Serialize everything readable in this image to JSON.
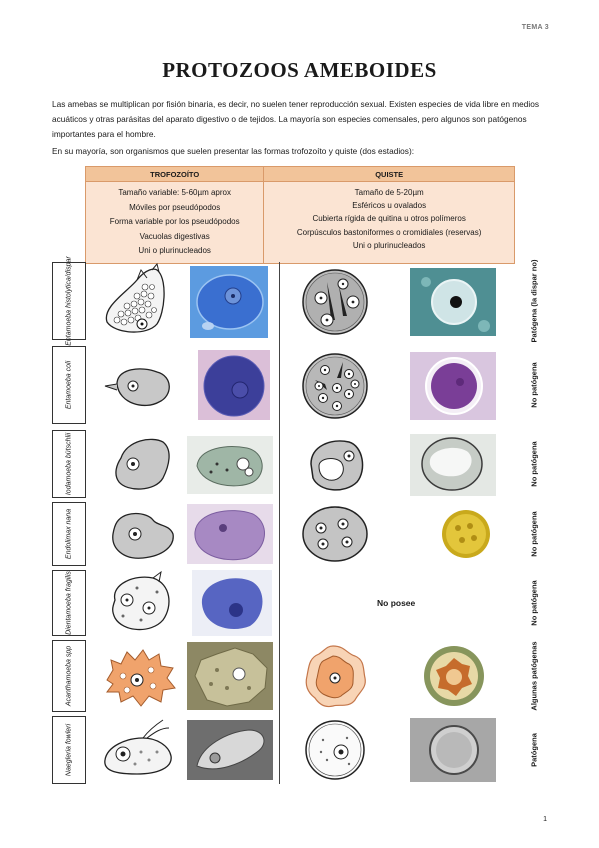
{
  "header": {
    "tema": "TEMA 3"
  },
  "title": "PROTOZOOS AMEBOIDES",
  "intro": {
    "p1": "Las amebas se multiplican por fisión binaria, es decir, no suelen tener reproducción sexual. Existen especies de vida libre en medios acuáticos y otras parásitas del aparato digestivo o de tejidos. La mayoría son especies comensales, pero algunos son patógenos importantes para el hombre.",
    "p2": "En su mayoría, son organismos que suelen presentar las formas trofozoíto y quiste (dos estadios):"
  },
  "comparison": {
    "trofozoito": {
      "header": "TROFOZOÍTO",
      "items": [
        "Tamaño variable: 5-60µm aprox",
        "Móviles por pseudópodos",
        "Forma variable por los pseudópodos",
        "Vacuolas digestivas",
        "Uni o plurinucleados"
      ]
    },
    "quiste": {
      "header": "QUISTE",
      "items": [
        "Tamaño de 5-20µm",
        "Esféricos u ovalados",
        "Cubierta rígida de quitina u otros polímeros",
        "Corpúsculos bastoniformes o cromidiales (reservas)",
        "Uni o plurinucleados"
      ]
    }
  },
  "species": [
    {
      "name": "Entamoeba histolytica/dispar",
      "status": "Patógena (la dispar no)"
    },
    {
      "name": "Entamoeba coli",
      "status": "No patógena"
    },
    {
      "name": "Iodamoeba bütschlii",
      "status": "No patógena"
    },
    {
      "name": "Endolimax nana",
      "status": "No patógena"
    },
    {
      "name": "Dientamoeba fragilis",
      "status": "No patógena",
      "cyst_note": "No posee"
    },
    {
      "name": "Acanthamoeba spp",
      "status": "Algunas patógenas"
    },
    {
      "name": "Naegleria fowleri",
      "status": "Patógena"
    }
  ],
  "page_number": "1",
  "colors": {
    "table_header": "#f2c49a",
    "table_body": "#fbe4d3",
    "micrograph_blue": "#3f66c6",
    "acanthamoeba_orange": "#f0a36c"
  }
}
